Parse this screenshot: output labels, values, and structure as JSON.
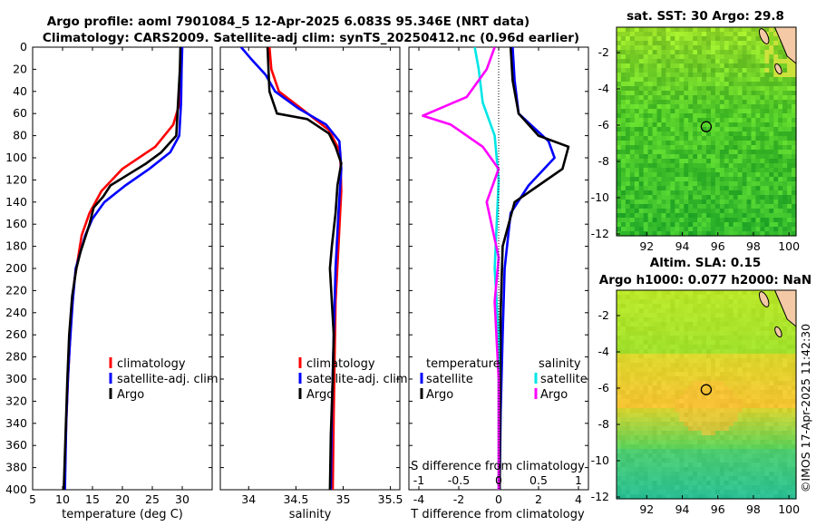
{
  "header": {
    "title_line1": "Argo profile: aoml 7901084_5 12-Apr-2025 6.083S 95.346E (NRT data)",
    "title_line2": "Climatology: CARS2009. Satellite-adj clim: synTS_20250412.nc (0.96d earlier)"
  },
  "depth_ticks": [
    "0",
    "20",
    "40",
    "60",
    "80",
    "100",
    "120",
    "140",
    "160",
    "180",
    "200",
    "220",
    "240",
    "260",
    "280",
    "300",
    "320",
    "340",
    "360",
    "380",
    "400"
  ],
  "colors": {
    "climatology": "#ff0000",
    "satellite": "#0000ff",
    "argo": "#000000",
    "sat_diff": "#00e6e6",
    "argo_diff": "#ff00ff",
    "land": "#f4c9a6"
  },
  "chart_data": [
    {
      "id": "temperature",
      "type": "line",
      "xlabel": "temperature (deg C)",
      "ylabel": "",
      "xlim": [
        5,
        35
      ],
      "ylim": [
        400,
        0
      ],
      "xticks": [
        "5",
        "10",
        "15",
        "20",
        "25",
        "30"
      ],
      "legend": [
        "climatology",
        "satellite-adj. clim",
        "Argo"
      ],
      "series": [
        {
          "name": "climatology",
          "color": "#ff0000",
          "points": [
            [
              29.9,
              0
            ],
            [
              29.8,
              20
            ],
            [
              29.6,
              50
            ],
            [
              28.5,
              70
            ],
            [
              25.5,
              90
            ],
            [
              20.0,
              110
            ],
            [
              16.5,
              130
            ],
            [
              14.5,
              150
            ],
            [
              13.2,
              170
            ],
            [
              12.6,
              190
            ],
            [
              12.0,
              210
            ],
            [
              11.5,
              240
            ],
            [
              11.2,
              270
            ],
            [
              10.9,
              300
            ],
            [
              10.6,
              340
            ],
            [
              10.3,
              400
            ]
          ]
        },
        {
          "name": "satellite-adj. clim",
          "color": "#0000ff",
          "points": [
            [
              30.0,
              0
            ],
            [
              29.9,
              20
            ],
            [
              29.8,
              50
            ],
            [
              29.5,
              80
            ],
            [
              28.0,
              95
            ],
            [
              24.5,
              110
            ],
            [
              20.5,
              125
            ],
            [
              17.0,
              140
            ],
            [
              15.0,
              155
            ],
            [
              13.8,
              170
            ],
            [
              13.0,
              185
            ],
            [
              12.2,
              200
            ],
            [
              11.7,
              230
            ],
            [
              11.2,
              270
            ],
            [
              10.9,
              300
            ],
            [
              10.6,
              340
            ],
            [
              10.4,
              400
            ]
          ]
        },
        {
          "name": "Argo",
          "color": "#000000",
          "points": [
            [
              29.7,
              0
            ],
            [
              29.6,
              20
            ],
            [
              29.3,
              50
            ],
            [
              29.0,
              80
            ],
            [
              26.5,
              95
            ],
            [
              24.0,
              105
            ],
            [
              21.0,
              115
            ],
            [
              18.0,
              125
            ],
            [
              16.8,
              135
            ],
            [
              15.2,
              145
            ],
            [
              14.5,
              160
            ],
            [
              13.6,
              175
            ],
            [
              13.0,
              185
            ],
            [
              12.3,
              200
            ],
            [
              11.6,
              225
            ],
            [
              11.1,
              260
            ],
            [
              10.8,
              300
            ],
            [
              10.5,
              350
            ],
            [
              10.2,
              400
            ]
          ]
        }
      ]
    },
    {
      "id": "salinity",
      "type": "line",
      "xlabel": "salinity",
      "xlim": [
        33.7,
        35.6
      ],
      "ylim": [
        400,
        0
      ],
      "xticks": [
        "34",
        "34.5",
        "35",
        "35.5"
      ],
      "xtick_values": [
        34,
        34.5,
        35,
        35.5
      ],
      "legend": [
        "climatology",
        "satellite-adj. clim",
        "Argo"
      ],
      "series": [
        {
          "name": "climatology",
          "color": "#ff0000",
          "points": [
            [
              34.22,
              0
            ],
            [
              34.24,
              20
            ],
            [
              34.32,
              40
            ],
            [
              34.55,
              55
            ],
            [
              34.85,
              75
            ],
            [
              34.97,
              95
            ],
            [
              34.98,
              130
            ],
            [
              34.95,
              180
            ],
            [
              34.92,
              230
            ],
            [
              34.91,
              280
            ],
            [
              34.9,
              330
            ],
            [
              34.89,
              400
            ]
          ]
        },
        {
          "name": "satellite-adj. clim",
          "color": "#0000ff",
          "points": [
            [
              33.92,
              0
            ],
            [
              34.02,
              10
            ],
            [
              34.18,
              25
            ],
            [
              34.28,
              40
            ],
            [
              34.52,
              55
            ],
            [
              34.82,
              70
            ],
            [
              34.96,
              85
            ],
            [
              34.98,
              110
            ],
            [
              34.95,
              150
            ],
            [
              34.92,
              200
            ],
            [
              34.9,
              260
            ],
            [
              34.88,
              330
            ],
            [
              34.87,
              400
            ]
          ]
        },
        {
          "name": "Argo",
          "color": "#000000",
          "points": [
            [
              34.2,
              0
            ],
            [
              34.21,
              20
            ],
            [
              34.22,
              40
            ],
            [
              34.3,
              60
            ],
            [
              34.62,
              65
            ],
            [
              34.85,
              78
            ],
            [
              34.92,
              90
            ],
            [
              34.98,
              105
            ],
            [
              34.94,
              125
            ],
            [
              34.92,
              150
            ],
            [
              34.88,
              180
            ],
            [
              34.86,
              200
            ],
            [
              34.88,
              230
            ],
            [
              34.9,
              260
            ],
            [
              34.89,
              300
            ],
            [
              34.87,
              350
            ],
            [
              34.86,
              400
            ]
          ]
        }
      ]
    },
    {
      "id": "differences",
      "type": "line",
      "xlabel": "T difference from climatology",
      "xlabel_top": "S difference from climatology",
      "xlim": [
        -4.5,
        4.5
      ],
      "ylim": [
        400,
        0
      ],
      "xticks": [
        "-4",
        "-2",
        "0",
        "2",
        "4"
      ],
      "xtick_values": [
        -4,
        -2,
        0,
        2,
        4
      ],
      "xticks_top": [
        "-1",
        "-0.5",
        "0",
        "0.5",
        "1"
      ],
      "xtick_top_values": [
        -1,
        -0.5,
        0,
        0.5,
        1
      ],
      "legend_temperature_title": "temperature",
      "legend_salinity_title": "salinity",
      "legend_temperature": [
        "satellite",
        "Argo"
      ],
      "legend_salinity": [
        "satellite",
        "Argo"
      ],
      "series": [
        {
          "name": "T satellite",
          "color": "#0000ff",
          "points": [
            [
              0.7,
              0
            ],
            [
              0.8,
              30
            ],
            [
              1.0,
              60
            ],
            [
              2.5,
              85
            ],
            [
              2.8,
              100
            ],
            [
              1.5,
              125
            ],
            [
              0.6,
              150
            ],
            [
              0.3,
              200
            ],
            [
              0.2,
              260
            ],
            [
              0.1,
              330
            ],
            [
              0.05,
              400
            ]
          ]
        },
        {
          "name": "T Argo",
          "color": "#000000",
          "points": [
            [
              0.6,
              0
            ],
            [
              0.7,
              30
            ],
            [
              1.0,
              60
            ],
            [
              2.0,
              80
            ],
            [
              3.5,
              90
            ],
            [
              3.2,
              110
            ],
            [
              2.0,
              125
            ],
            [
              0.8,
              140
            ],
            [
              0.2,
              180
            ],
            [
              0.1,
              240
            ],
            [
              0.05,
              400
            ]
          ]
        },
        {
          "name": "S satellite",
          "color": "#00e6e6",
          "points": [
            [
              -0.3,
              0
            ],
            [
              -0.25,
              20
            ],
            [
              -0.2,
              50
            ],
            [
              -0.05,
              80
            ],
            [
              0.0,
              120
            ],
            [
              -0.05,
              200
            ],
            [
              0.0,
              260
            ],
            [
              0.0,
              400
            ]
          ]
        },
        {
          "name": "S Argo",
          "color": "#ff00ff",
          "points": [
            [
              -0.05,
              0
            ],
            [
              -0.15,
              20
            ],
            [
              -0.4,
              45
            ],
            [
              -0.95,
              62
            ],
            [
              -0.6,
              70
            ],
            [
              -0.2,
              90
            ],
            [
              0.0,
              110
            ],
            [
              -0.15,
              140
            ],
            [
              0.0,
              190
            ],
            [
              -0.05,
              230
            ],
            [
              0.0,
              300
            ],
            [
              0.0,
              400
            ]
          ]
        }
      ]
    },
    {
      "id": "sst_map",
      "type": "heatmap",
      "title": "sat. SST: 30 Argo: 29.8",
      "xticks": [
        "92",
        "94",
        "96",
        "98",
        "100"
      ],
      "xtick_values": [
        92,
        94,
        96,
        98,
        100
      ],
      "yticks": [
        "-2",
        "-4",
        "-6",
        "-8",
        "-10",
        "-12"
      ],
      "ytick_values": [
        -2,
        -4,
        -6,
        -8,
        -10,
        -12
      ],
      "xlim": [
        90.3,
        100.4
      ],
      "ylim": [
        -12.1,
        -0.6
      ],
      "float_position": [
        95.346,
        -6.083
      ]
    },
    {
      "id": "sla_map",
      "type": "heatmap",
      "title_line1": "Altim. SLA: 0.15",
      "title_line2": "Argo h1000: 0.077 h2000: NaN",
      "xticks": [
        "92",
        "94",
        "96",
        "98",
        "100"
      ],
      "xtick_values": [
        92,
        94,
        96,
        98,
        100
      ],
      "yticks": [
        "-2",
        "-4",
        "-6",
        "-8",
        "-10",
        "-12"
      ],
      "ytick_values": [
        -2,
        -4,
        -6,
        -8,
        -10,
        -12
      ],
      "xlim": [
        90.3,
        100.4
      ],
      "ylim": [
        -12.1,
        -0.6
      ],
      "float_position": [
        95.346,
        -6.083
      ]
    }
  ],
  "footer": {
    "copyright": "©IMOS 17-Apr-2025 11:42:30"
  }
}
